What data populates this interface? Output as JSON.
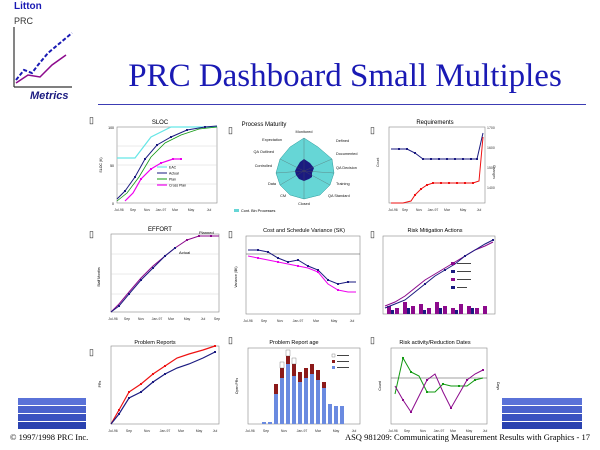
{
  "logo": {
    "company": "Litton",
    "unit": "PRC",
    "tagline": "Metrics"
  },
  "title": "PRC Dashboard Small Multiples",
  "footer": {
    "left": "© 1997/1998 PRC Inc.",
    "right": "ASQ 981209: Communicating Measurement Results with Graphics - 17"
  },
  "colors": {
    "title": "#1a1ab4",
    "navy": "#1a1a80",
    "magenta": "#ee00ee",
    "red": "#ee1111",
    "cyan": "#66e6e6",
    "purple": "#8c0a8c",
    "green": "#119911"
  },
  "panels": {
    "sloc": {
      "title": "SLOC",
      "legend": [
        "EAC",
        "Actual",
        "Plan",
        "Cross Plan"
      ]
    },
    "process": {
      "title": "Process Maturity",
      "axes": [
        "Monitored",
        "Defined",
        "Documented",
        "QA Decision",
        "Training",
        "QA Standard",
        "Closed",
        "CM",
        "Data",
        "Controlled",
        "QA Outlined",
        "Expectation"
      ],
      "legend": "Cont. Bin Processes"
    },
    "requirements": {
      "title": "Requirements"
    },
    "effort": {
      "title": "EFFORT",
      "labels": [
        "Planned",
        "Actual"
      ]
    },
    "cost_schedule": {
      "title": "Cost and Schedule Variance (SK)"
    },
    "risk": {
      "title": "Risk Mitigation Actions"
    },
    "problem_reports": {
      "title": "Problem Reports"
    },
    "problem_age": {
      "title": "Problem Report age"
    },
    "risk_activity": {
      "title": "Risk activity/Reduction Dates"
    }
  }
}
